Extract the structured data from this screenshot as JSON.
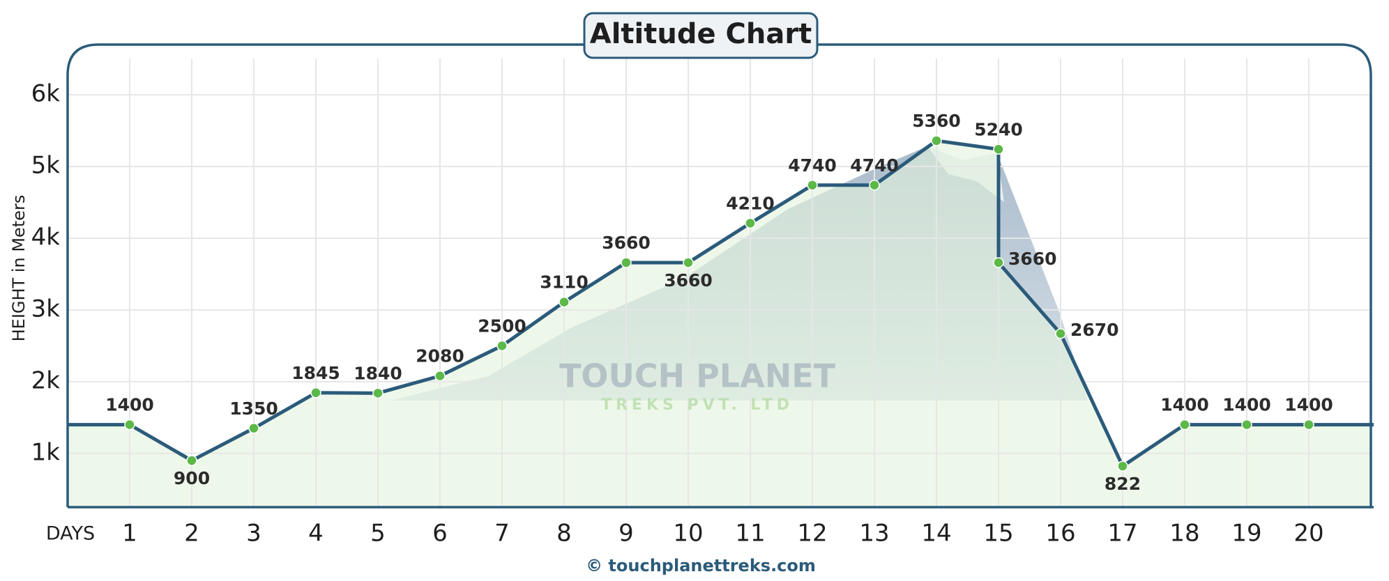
{
  "chart_data": {
    "type": "line",
    "title": "Altitude Chart",
    "y_label": "HEIGHT in Meters",
    "x_label": "DAYS",
    "watermark": [
      "TOUCH PLANET",
      "TREKS PVT. LTD"
    ],
    "footer": "© touchplanettreks.com",
    "x": [
      1,
      2,
      3,
      4,
      5,
      6,
      7,
      8,
      9,
      10,
      11,
      12,
      13,
      14,
      15,
      15,
      16,
      17,
      18,
      19,
      20
    ],
    "series": [
      {
        "color": "#2b5b7a",
        "point_color": "#5cb847",
        "values": [
          1400,
          900,
          1350,
          1845,
          1840,
          2080,
          2500,
          3110,
          3660,
          3660,
          4210,
          4740,
          4740,
          5360,
          5240,
          3660,
          2670,
          822,
          1400,
          1400,
          1400
        ]
      }
    ],
    "xlim": [
      0,
      21
    ],
    "xticks": [
      1,
      2,
      3,
      4,
      5,
      6,
      7,
      8,
      9,
      10,
      11,
      12,
      13,
      14,
      15,
      16,
      17,
      18,
      19,
      20
    ],
    "ylim": [
      250,
      6700
    ],
    "yticks": [
      {
        "value": 1000,
        "label": "1k"
      },
      {
        "value": 2000,
        "label": "2k"
      },
      {
        "value": 3000,
        "label": "3k"
      },
      {
        "value": 4000,
        "label": "4k"
      },
      {
        "value": 5000,
        "label": "5k"
      },
      {
        "value": 6000,
        "label": "6k"
      }
    ],
    "grid": true
  }
}
